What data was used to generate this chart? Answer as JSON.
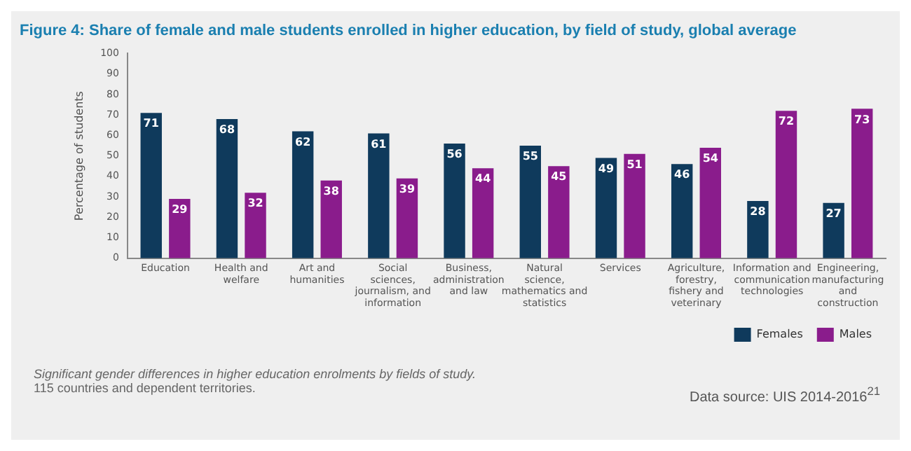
{
  "chart_data": {
    "type": "bar",
    "title": "Figure 4: Share of female and male students enrolled in higher education, by field of study, global average",
    "ylabel": "Percentage of students",
    "categories": [
      "Education",
      "Health and welfare",
      "Art and humanities",
      "Social sciences, journalism, and information",
      "Business, administration and law",
      "Natural science, mathematics and statistics",
      "Services",
      "Agriculture, forestry, fishery and veterinary",
      "Information and communication technologies",
      "Engineering, manufacturing and construction"
    ],
    "series": [
      {
        "name": "Females",
        "color": "#0f3a5c",
        "values": [
          71,
          68,
          62,
          61,
          56,
          55,
          49,
          46,
          28,
          27
        ]
      },
      {
        "name": "Males",
        "color": "#8a1c8c",
        "values": [
          29,
          32,
          38,
          39,
          44,
          45,
          51,
          54,
          72,
          73
        ]
      }
    ],
    "ylim": [
      0,
      100
    ],
    "yticks": [
      0,
      10,
      20,
      30,
      40,
      50,
      60,
      70,
      80,
      90,
      100
    ],
    "grid": false,
    "legend": "bottom",
    "data_labels": true,
    "annotations": [
      "Significant gender differences in higher education enrolments by fields of study.",
      "115 countries and dependent territories.",
      "Data source: UIS 2014-2016$^{21}$"
    ]
  }
}
